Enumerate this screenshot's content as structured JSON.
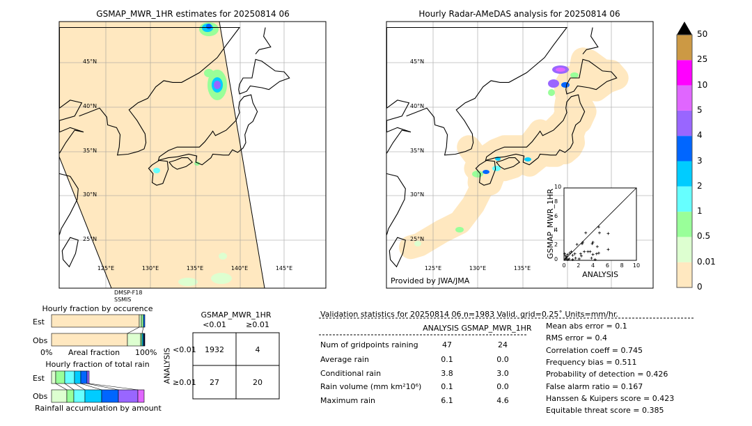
{
  "left_map": {
    "title": "GSMAP_MWR_1HR estimates for 20250814 06",
    "satellite": "DMSP-F18",
    "sensor": "SSMIS",
    "lat_labels": [
      "45°N",
      "40°N",
      "35°N",
      "30°N",
      "25°N"
    ],
    "lon_labels": [
      "125°E",
      "130°E",
      "135°E",
      "140°E",
      "145°E"
    ]
  },
  "right_map": {
    "title": "Hourly Radar-AMeDAS analysis for 20250814 06",
    "credit": "Provided by JWA/JMA",
    "lat_labels": [
      "45°N",
      "40°N",
      "35°N",
      "30°N",
      "25°N"
    ],
    "lon_labels": [
      "125°E",
      "130°E",
      "135°E"
    ]
  },
  "colorbar": {
    "labels": [
      "0",
      "0.01",
      "0.5",
      "1",
      "2",
      "3",
      "4",
      "5",
      "10",
      "25",
      "50"
    ],
    "colors": [
      "#ffe8c0",
      "#ddffd0",
      "#99ff99",
      "#66ffff",
      "#00ccff",
      "#0066ff",
      "#9966ff",
      "#e066ff",
      "#ff00ff",
      "#cc9944"
    ],
    "extend_color": "#000000"
  },
  "occurrence": {
    "title": "Hourly fraction by occurence",
    "est_label": "Est",
    "obs_label": "Obs",
    "axis_left": "0%",
    "axis_mid": "Areal fraction",
    "axis_right": "100%"
  },
  "total_rain": {
    "title": "Hourly fraction of total rain",
    "est_label": "Est",
    "obs_label": "Obs",
    "xlabel": "Rainfall accumulation by amount"
  },
  "contingency": {
    "col_title": "GSMAP_MWR_1HR",
    "col_headers": [
      "<0.01",
      "≥0.01"
    ],
    "row_title": "ANALYSIS",
    "row_headers": [
      "<0.01",
      "≥0.01"
    ],
    "cells": [
      [
        "1932",
        "4"
      ],
      [
        "27",
        "20"
      ]
    ]
  },
  "stats": {
    "title": "Validation statistics for 20250814 06  n=1983 Valid. grid=0.25˚ Units=mm/hr.",
    "col_analysis": "ANALYSIS",
    "col_gsmap": "GSMAP_MWR_1HR",
    "rows": [
      {
        "label": "Num of gridpoints raining",
        "analysis": "47",
        "gsmap": "24"
      },
      {
        "label": "Average rain",
        "analysis": "0.1",
        "gsmap": "0.0"
      },
      {
        "label": "Conditional rain",
        "analysis": "3.8",
        "gsmap": "3.0"
      },
      {
        "label": "Rain volume (mm km²10⁶)",
        "analysis": "0.1",
        "gsmap": "0.0"
      },
      {
        "label": "Maximum rain",
        "analysis": "6.1",
        "gsmap": "4.6"
      }
    ],
    "scores": [
      "Mean abs error =    0.1",
      "RMS error =    0.4",
      "Correlation coeff =  0.745",
      "Frequency bias =  0.511",
      "Probability of detection =  0.426",
      "False alarm ratio =  0.167",
      "Hanssen & Kuipers score =  0.423",
      "Equitable threat score =  0.385"
    ]
  },
  "chart_data": {
    "type": "scatter",
    "xlabel": "ANALYSIS",
    "ylabel": "GSMAP_MWR_1HR",
    "xlim": [
      0,
      10
    ],
    "ylim": [
      0,
      10
    ],
    "ticks": [
      "0",
      "2",
      "4",
      "6",
      "8",
      "10"
    ],
    "points": [
      [
        4.8,
        4.6
      ],
      [
        3,
        3.8
      ],
      [
        4.9,
        3.8
      ],
      [
        6.1,
        3.7
      ],
      [
        6.1,
        1.5
      ],
      [
        4,
        2.5
      ],
      [
        3.9,
        2.3
      ],
      [
        2.6,
        2.5
      ],
      [
        2.5,
        2.3
      ],
      [
        1.8,
        2.2
      ],
      [
        4.6,
        1.9
      ],
      [
        3.3,
        1.2
      ],
      [
        3.6,
        1.2
      ],
      [
        2.8,
        1.2
      ],
      [
        4.8,
        1.0
      ],
      [
        4.5,
        0.9
      ],
      [
        4,
        0.8
      ],
      [
        2.3,
        0.9
      ],
      [
        2.4,
        0.6
      ],
      [
        1.5,
        0.9
      ],
      [
        1.2,
        0.7
      ],
      [
        1.0,
        1.2
      ],
      [
        0.8,
        1.0
      ],
      [
        0.5,
        0.8
      ],
      [
        0.4,
        0.5
      ],
      [
        0.3,
        0.3
      ],
      [
        0.2,
        0.2
      ],
      [
        0.5,
        0.1
      ],
      [
        3.8,
        0.3
      ],
      [
        4.3,
        0.1
      ],
      [
        2.1,
        0.2
      ],
      [
        1.6,
        0.3
      ],
      [
        0.7,
        0.2
      ],
      [
        1.2,
        0.1
      ],
      [
        0.1,
        0.9
      ],
      [
        0.2,
        0.6
      ]
    ]
  }
}
